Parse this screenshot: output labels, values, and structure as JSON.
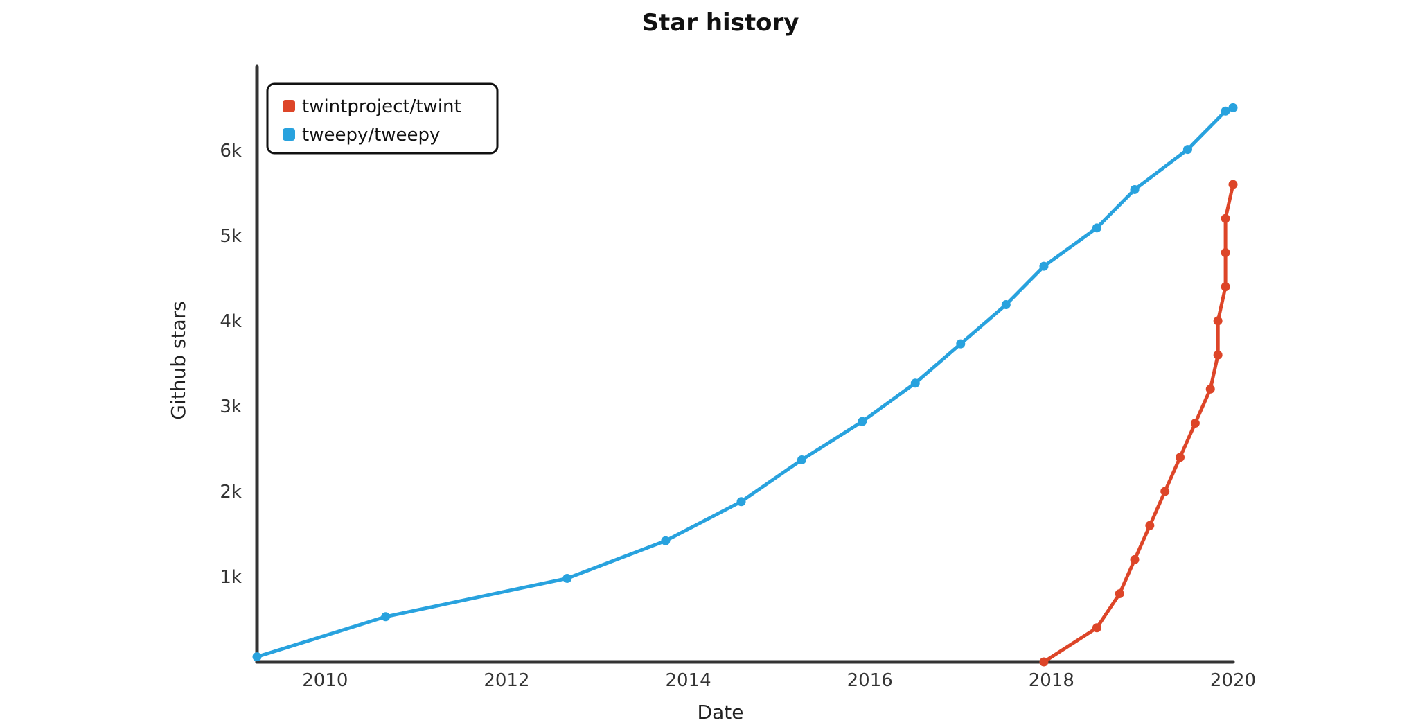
{
  "chart_data": {
    "type": "line",
    "title": "Star history",
    "xlabel": "Date",
    "ylabel": "Github stars",
    "xlim": [
      "2009-10",
      "2020-07"
    ],
    "ylim": [
      0,
      6950
    ],
    "x_ticks": [
      "2010",
      "2012",
      "2014",
      "2016",
      "2018",
      "2020"
    ],
    "y_ticks": [
      "1k",
      "2k",
      "3k",
      "4k",
      "5k",
      "6k"
    ],
    "y_tick_values": [
      1000,
      2000,
      3000,
      4000,
      5000,
      6000
    ],
    "grid": false,
    "legend_position": "top-left",
    "series": [
      {
        "name": "twintproject/twint",
        "color": "#dd4528",
        "points": [
          {
            "x": "2018-06",
            "y": 0
          },
          {
            "x": "2019-01",
            "y": 400
          },
          {
            "x": "2019-04",
            "y": 800
          },
          {
            "x": "2019-06",
            "y": 1200
          },
          {
            "x": "2019-08",
            "y": 1600
          },
          {
            "x": "2019-10",
            "y": 2000
          },
          {
            "x": "2019-12",
            "y": 2400
          },
          {
            "x": "2020-02",
            "y": 2800
          },
          {
            "x": "2020-04",
            "y": 3200
          },
          {
            "x": "2020-05",
            "y": 3600
          },
          {
            "x": "2020-05",
            "y": 4000
          },
          {
            "x": "2020-06",
            "y": 4400
          },
          {
            "x": "2020-06",
            "y": 4800
          },
          {
            "x": "2020-06",
            "y": 5200
          },
          {
            "x": "2020-07",
            "y": 5600
          }
        ]
      },
      {
        "name": "tweepy/tweepy",
        "color": "#28a2de",
        "points": [
          {
            "x": "2009-10",
            "y": 60
          },
          {
            "x": "2011-03",
            "y": 530
          },
          {
            "x": "2013-03",
            "y": 980
          },
          {
            "x": "2014-04",
            "y": 1420
          },
          {
            "x": "2015-02",
            "y": 1880
          },
          {
            "x": "2015-10",
            "y": 2370
          },
          {
            "x": "2016-06",
            "y": 2820
          },
          {
            "x": "2017-01",
            "y": 3270
          },
          {
            "x": "2017-07",
            "y": 3730
          },
          {
            "x": "2018-01",
            "y": 4190
          },
          {
            "x": "2018-06",
            "y": 4640
          },
          {
            "x": "2019-01",
            "y": 5090
          },
          {
            "x": "2019-06",
            "y": 5540
          },
          {
            "x": "2020-01",
            "y": 6010
          },
          {
            "x": "2020-06",
            "y": 6460
          },
          {
            "x": "2020-07",
            "y": 6500
          }
        ]
      }
    ]
  }
}
